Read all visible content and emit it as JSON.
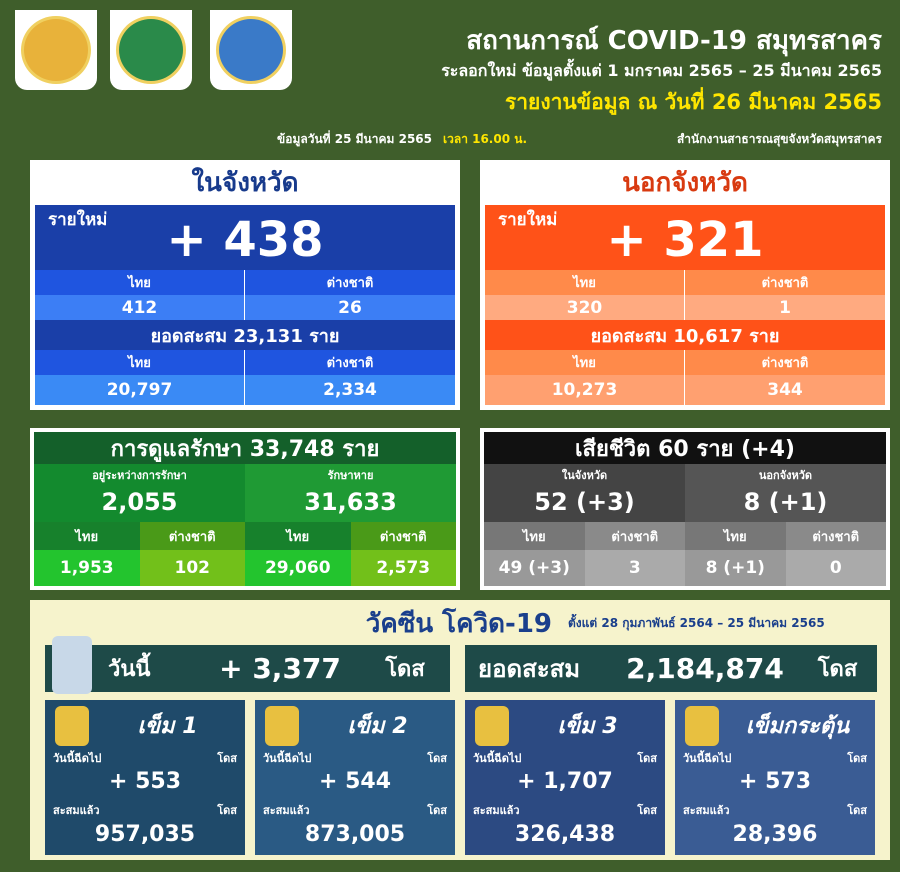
{
  "header": {
    "title": "สถานการณ์ COVID-19 สมุทรสาคร",
    "subtitle": "ระลอกใหม่ ข้อมูลตั้งแต่ 1 มกราคม 2565 – 25 มีนาคม 2565",
    "report_date": "รายงานข้อมูล ณ วันที่ 26 มีนาคม 2565",
    "source_date": "ข้อมูลวันที่ 25 มีนาคม 2565",
    "source_time": "เวลา 16.00 น.",
    "source_agency": "สำนักงานสาธารณสุขจังหวัดสมุทรสาคร"
  },
  "inside": {
    "title": "ในจังหวัด",
    "new_label": "รายใหม่",
    "new_value": "+ 438",
    "thai_label": "ไทย",
    "foreign_label": "ต่างชาติ",
    "thai_new": "412",
    "foreign_new": "26",
    "cumulative": "ยอดสะสม 23,131 ราย",
    "thai_cum": "20,797",
    "foreign_cum": "2,334"
  },
  "outside": {
    "title": "นอกจังหวัด",
    "new_label": "รายใหม่",
    "new_value": "+ 321",
    "thai_label": "ไทย",
    "foreign_label": "ต่างชาติ",
    "thai_new": "320",
    "foreign_new": "1",
    "cumulative": "ยอดสะสม 10,617 ราย",
    "thai_cum": "10,273",
    "foreign_cum": "344"
  },
  "care": {
    "title": "การดูแลรักษา 33,748 ราย",
    "treating_label": "อยู่ระหว่างการรักษา",
    "treating": "2,055",
    "recovered_label": "รักษาหาย",
    "recovered": "31,633",
    "thai_label": "ไทย",
    "foreign_label": "ต่างชาติ",
    "treating_thai": "1,953",
    "treating_foreign": "102",
    "recovered_thai": "29,060",
    "recovered_foreign": "2,573"
  },
  "deaths": {
    "title": "เสียชีวิต 60 ราย (+4)",
    "inside_label": "ในจังหวัด",
    "inside": "52 (+3)",
    "outside_label": "นอกจังหวัด",
    "outside": "8 (+1)",
    "thai_label": "ไทย",
    "foreign_label": "ต่างชาติ",
    "inside_thai": "49 (+3)",
    "inside_foreign": "3",
    "outside_thai": "8 (+1)",
    "outside_foreign": "0"
  },
  "vaccine": {
    "title": "วัคซีน โควิด-19",
    "period": "ตั้งแต่ 28 กุมภาพันธ์ 2564 – 25 มีนาคม 2565",
    "today_label": "วันนี้",
    "today": "+ 3,377",
    "unit": "โดส",
    "cum_label": "ยอดสะสม",
    "cum": "2,184,874",
    "doses": [
      {
        "name": "เข็ม 1",
        "today_label": "วันนี้ฉีดไป",
        "unit": "โดส",
        "today": "+ 553",
        "cum_label": "สะสมแล้ว",
        "cum": "957,035"
      },
      {
        "name": "เข็ม 2",
        "today_label": "วันนี้ฉีดไป",
        "unit": "โดส",
        "today": "+ 544",
        "cum_label": "สะสมแล้ว",
        "cum": "873,005"
      },
      {
        "name": "เข็ม 3",
        "today_label": "วันนี้ฉีดไป",
        "unit": "โดส",
        "today": "+ 1,707",
        "cum_label": "สะสมแล้ว",
        "cum": "326,438"
      },
      {
        "name": "เข็มกระตุ้น",
        "today_label": "วันนี้ฉีดไป",
        "unit": "โดส",
        "today": "+ 573",
        "cum_label": "สะสมแล้ว",
        "cum": "28,396"
      }
    ]
  }
}
